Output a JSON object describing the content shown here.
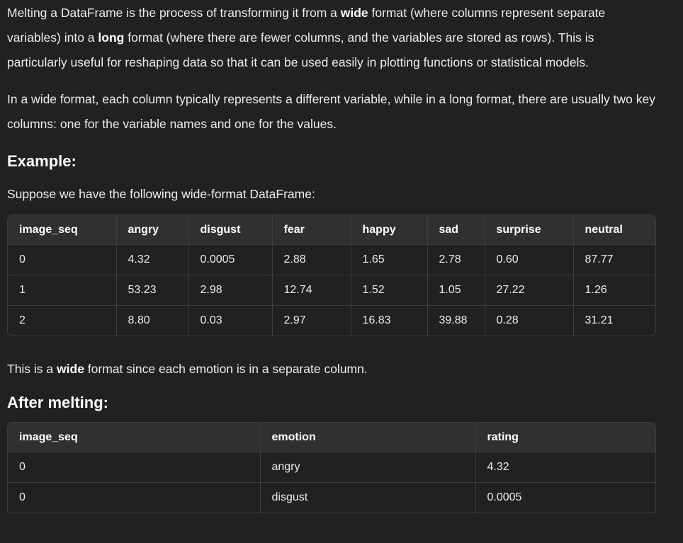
{
  "intro": {
    "t1": "Melting a DataFrame is the process of transforming it from a ",
    "b1": "wide",
    "t2": " format (where columns represent separate variables) into a ",
    "b2": "long",
    "t3": " format (where there are fewer columns, and the variables are stored as rows). This is particularly useful for reshaping data so that it can be used easily in plotting functions or statistical models."
  },
  "para2": "In a wide format, each column typically represents a different variable, while in a long format, there are usually two key columns: one for the variable names and one for the values.",
  "example_heading": "Example:",
  "example_intro": "Suppose we have the following wide-format DataFrame:",
  "wide_table": {
    "headers": [
      "image_seq",
      "angry",
      "disgust",
      "fear",
      "happy",
      "sad",
      "surprise",
      "neutral"
    ],
    "rows": [
      [
        "0",
        "4.32",
        "0.0005",
        "2.88",
        "1.65",
        "2.78",
        "0.60",
        "87.77"
      ],
      [
        "1",
        "53.23",
        "2.98",
        "12.74",
        "1.52",
        "1.05",
        "27.22",
        "1.26"
      ],
      [
        "2",
        "8.80",
        "0.03",
        "2.97",
        "16.83",
        "39.88",
        "0.28",
        "31.21"
      ]
    ]
  },
  "wide_note": {
    "t1": "This is a ",
    "b1": "wide",
    "t2": " format since each emotion is in a separate column."
  },
  "after_heading": "After melting:",
  "long_table": {
    "headers": [
      "image_seq",
      "emotion",
      "rating"
    ],
    "rows": [
      [
        "0",
        "angry",
        "4.32"
      ],
      [
        "0",
        "disgust",
        "0.0005"
      ]
    ]
  }
}
